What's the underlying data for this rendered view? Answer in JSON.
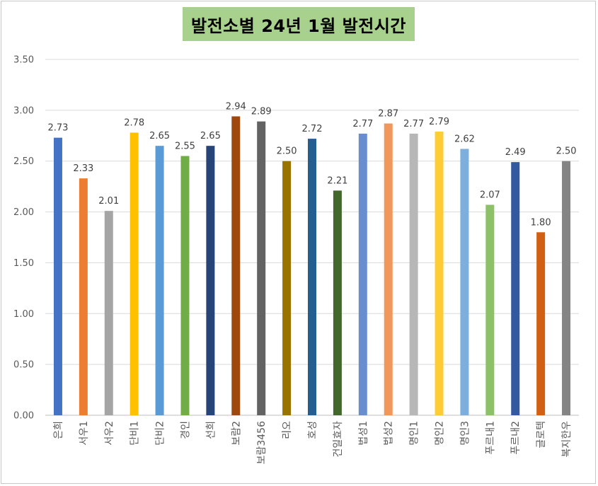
{
  "chart_data": {
    "type": "bar",
    "title": "발전소별 24년 1월 발전시간",
    "xlabel": "",
    "ylabel": "",
    "ylim": [
      0,
      3.5
    ],
    "yticks": [
      "0.00",
      "0.50",
      "1.00",
      "1.50",
      "2.00",
      "2.50",
      "3.00",
      "3.50"
    ],
    "grid": true,
    "legend": "none",
    "categories": [
      "은희",
      "서우1",
      "서우2",
      "단비1",
      "단비2",
      "경인",
      "선희",
      "보람2",
      "보람3456",
      "리오",
      "호성",
      "건일효자",
      "법성1",
      "법성2",
      "명인1",
      "명인2",
      "명인3",
      "푸르내1",
      "푸르내2",
      "글로텍",
      "복지한우"
    ],
    "values": [
      2.73,
      2.33,
      2.01,
      2.78,
      2.65,
      2.55,
      2.65,
      2.94,
      2.89,
      2.5,
      2.72,
      2.21,
      2.77,
      2.87,
      2.77,
      2.79,
      2.62,
      2.07,
      2.49,
      1.8,
      2.5
    ],
    "value_labels": [
      "2.73",
      "2.33",
      "2.01",
      "2.78",
      "2.65",
      "2.55",
      "2.65",
      "2.94",
      "2.89",
      "2.50",
      "2.72",
      "2.21",
      "2.77",
      "2.87",
      "2.77",
      "2.79",
      "2.62",
      "2.07",
      "2.49",
      "1.80",
      "2.50"
    ],
    "colors": [
      "#4472c4",
      "#ed7d31",
      "#a5a5a5",
      "#ffc000",
      "#5b9bd5",
      "#70ad47",
      "#264478",
      "#9e480e",
      "#636363",
      "#997300",
      "#255e91",
      "#43682b",
      "#698ed0",
      "#f1975a",
      "#b7b7b7",
      "#ffcd33",
      "#7cafdd",
      "#8cc168",
      "#335aa1",
      "#d26012",
      "#848484"
    ],
    "title_background": "#a9d18e",
    "gridline_color": "#d9d9d9"
  }
}
